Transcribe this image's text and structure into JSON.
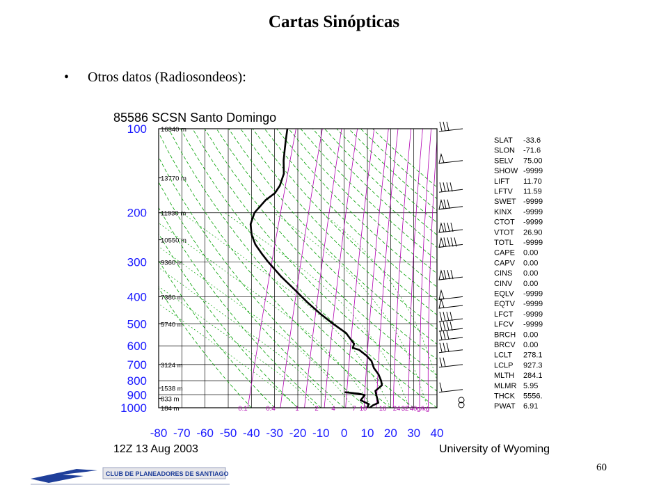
{
  "slide": {
    "title": "Cartas Sinópticas",
    "bullet": "Otros datos (Radiosondeos):",
    "page_number": "60",
    "footer_logo_text": "CLUB DE PLANEADORES DE SANTIAGO"
  },
  "colors": {
    "grid": "#000000",
    "dry_adiabats": "#00a000",
    "moist_adiabats": "#00a000",
    "mixing_ratio": "#b000b0",
    "temperature": "#000000",
    "header_title": "#000000",
    "axis_labels": "#1a1aff"
  },
  "chart_data": {
    "type": "line",
    "title": "85586 SCSN Santo Domingo",
    "subtitle_left": "12Z 13 Aug 2003",
    "subtitle_right": "University of Wyoming",
    "pressure_ticks": [
      100,
      200,
      300,
      400,
      500,
      600,
      700,
      800,
      900,
      1000
    ],
    "pressure_range": [
      100,
      1000
    ],
    "temp_ticks": [
      -80,
      -70,
      -60,
      -50,
      -40,
      -30,
      -20,
      -10,
      0,
      10,
      20,
      30,
      40
    ],
    "temp_range": [
      -80,
      40
    ],
    "height_labels": [
      {
        "p": 100,
        "text": "16340 m"
      },
      {
        "p": 150,
        "text": "13770 m"
      },
      {
        "p": 200,
        "text": "11930 m"
      },
      {
        "p": 250,
        "text": "10550 m"
      },
      {
        "p": 300,
        "text": "9360 m"
      },
      {
        "p": 400,
        "text": "7380 m"
      },
      {
        "p": 500,
        "text": "5740 m"
      },
      {
        "p": 700,
        "text": "3124 m"
      },
      {
        "p": 850,
        "text": "1538 m"
      },
      {
        "p": 925,
        "text": "833 m"
      },
      {
        "p": 1000,
        "text": "184 m"
      }
    ],
    "mixing_ratio_labels": [
      "0.1",
      "0.4",
      "1",
      "2",
      "4",
      "7",
      "10",
      "16",
      "24",
      "32",
      "40",
      "g/kg"
    ],
    "series": [
      {
        "values": [
          [
            100,
            -65
          ],
          [
            110,
            -64
          ],
          [
            120,
            -63
          ],
          [
            130,
            -62
          ],
          [
            145,
            -60
          ],
          [
            160,
            -60
          ],
          [
            170,
            -61
          ],
          [
            180,
            -64
          ],
          [
            200,
            -67
          ],
          [
            220,
            -67
          ],
          [
            240,
            -65
          ],
          [
            260,
            -62
          ],
          [
            280,
            -58
          ],
          [
            300,
            -54
          ],
          [
            340,
            -46
          ],
          [
            380,
            -38
          ],
          [
            420,
            -31
          ],
          [
            460,
            -24
          ],
          [
            500,
            -17
          ],
          [
            540,
            -10
          ],
          [
            560,
            -8
          ],
          [
            590,
            -5
          ],
          [
            610,
            -5
          ],
          [
            620,
            -2
          ],
          [
            650,
            2
          ],
          [
            680,
            5
          ],
          [
            720,
            7
          ],
          [
            760,
            10
          ],
          [
            800,
            12
          ],
          [
            830,
            13
          ],
          [
            850,
            12
          ],
          [
            870,
            11
          ],
          [
            900,
            12
          ],
          [
            930,
            13
          ],
          [
            960,
            14
          ],
          [
            980,
            12
          ],
          [
            1000,
            11
          ],
          [
            1013,
            10
          ]
        ]
      },
      {
        "values": [
          [
            880,
            -2
          ],
          [
            890,
            4
          ],
          [
            900,
            7
          ],
          [
            940,
            6
          ],
          [
            970,
            10
          ],
          [
            1000,
            10
          ],
          [
            1013,
            9
          ]
        ]
      }
    ],
    "indices": [
      {
        "label": "SLAT",
        "value": "-33.6"
      },
      {
        "label": "SLON",
        "value": "-71.6"
      },
      {
        "label": "SELV",
        "value": "75.00"
      },
      {
        "label": "SHOW",
        "value": "-9999"
      },
      {
        "label": "LIFT",
        "value": "11.70"
      },
      {
        "label": "LFTV",
        "value": "11.59"
      },
      {
        "label": "SWET",
        "value": "-9999"
      },
      {
        "label": "KINX",
        "value": "-9999"
      },
      {
        "label": "CTOT",
        "value": "-9999"
      },
      {
        "label": "VTOT",
        "value": "26.90"
      },
      {
        "label": "TOTL",
        "value": "-9999"
      },
      {
        "label": "CAPE",
        "value": "0.00"
      },
      {
        "label": "CAPV",
        "value": "0.00"
      },
      {
        "label": "CINS",
        "value": "0.00"
      },
      {
        "label": "CINV",
        "value": "0.00"
      },
      {
        "label": "EQLV",
        "value": "-9999"
      },
      {
        "label": "EQTV",
        "value": "-9999"
      },
      {
        "label": "LFCT",
        "value": "-9999"
      },
      {
        "label": "LFCV",
        "value": "-9999"
      },
      {
        "label": "BRCH",
        "value": "0.00"
      },
      {
        "label": "BRCV",
        "value": "0.00"
      },
      {
        "label": "LCLT",
        "value": "278.1"
      },
      {
        "label": "LCLP",
        "value": "927.3"
      },
      {
        "label": "MLTH",
        "value": "284.1"
      },
      {
        "label": "MLMR",
        "value": "5.95"
      },
      {
        "label": "THCK",
        "value": "5556."
      },
      {
        "label": "PWAT",
        "value": "6.91"
      }
    ],
    "wind_barbs": [
      {
        "p": 100,
        "kind": "barb3"
      },
      {
        "p": 130,
        "kind": "pennant"
      },
      {
        "p": 165,
        "kind": "barb4"
      },
      {
        "p": 190,
        "kind": "pennant2"
      },
      {
        "p": 230,
        "kind": "pennant3"
      },
      {
        "p": 260,
        "kind": "pennant4"
      },
      {
        "p": 340,
        "kind": "pennant3"
      },
      {
        "p": 400,
        "kind": "pennant"
      },
      {
        "p": 430,
        "kind": "pennant"
      },
      {
        "p": 480,
        "kind": "barb4"
      },
      {
        "p": 520,
        "kind": "barb4"
      },
      {
        "p": 560,
        "kind": "barb3"
      },
      {
        "p": 620,
        "kind": "barb3"
      },
      {
        "p": 700,
        "kind": "barb2"
      },
      {
        "p": 860,
        "kind": "barb1"
      },
      {
        "p": 960,
        "kind": "calm"
      },
      {
        "p": 1000,
        "kind": "calm"
      }
    ]
  }
}
